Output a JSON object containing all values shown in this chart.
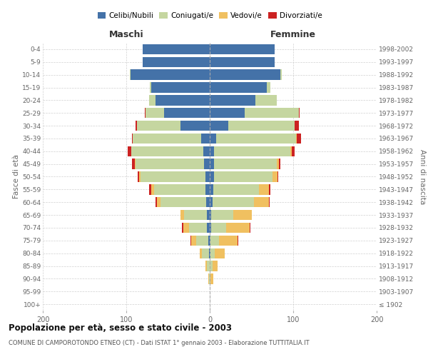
{
  "age_groups": [
    "100+",
    "95-99",
    "90-94",
    "85-89",
    "80-84",
    "75-79",
    "70-74",
    "65-69",
    "60-64",
    "55-59",
    "50-54",
    "45-49",
    "40-44",
    "35-39",
    "30-34",
    "25-29",
    "20-24",
    "15-19",
    "10-14",
    "5-9",
    "0-4"
  ],
  "birth_years": [
    "≤ 1902",
    "1903-1907",
    "1908-1912",
    "1913-1917",
    "1918-1922",
    "1923-1927",
    "1928-1932",
    "1933-1937",
    "1938-1942",
    "1943-1947",
    "1948-1952",
    "1953-1957",
    "1958-1962",
    "1963-1967",
    "1968-1972",
    "1973-1977",
    "1978-1982",
    "1983-1987",
    "1988-1992",
    "1993-1997",
    "1998-2002"
  ],
  "colors": {
    "celibi": "#4472a8",
    "coniugati": "#c5d6a0",
    "vedovi": "#f0c060",
    "divorziati": "#cc2222"
  },
  "males_celibi": [
    0,
    0,
    0,
    0,
    1,
    2,
    3,
    3,
    4,
    5,
    5,
    7,
    8,
    10,
    35,
    55,
    65,
    70,
    95,
    80,
    80
  ],
  "males_coniugati": [
    0,
    0,
    1,
    3,
    8,
    14,
    22,
    28,
    55,
    62,
    78,
    82,
    86,
    82,
    52,
    22,
    8,
    2,
    1,
    0,
    0
  ],
  "males_vedovi": [
    0,
    0,
    1,
    2,
    3,
    6,
    7,
    4,
    4,
    3,
    2,
    1,
    0,
    0,
    0,
    0,
    0,
    0,
    0,
    0,
    0
  ],
  "males_divorziati": [
    0,
    0,
    0,
    0,
    0,
    1,
    1,
    0,
    2,
    3,
    1,
    3,
    4,
    1,
    2,
    1,
    0,
    0,
    0,
    0,
    0
  ],
  "females_nubili": [
    0,
    0,
    0,
    0,
    1,
    1,
    2,
    2,
    3,
    4,
    5,
    5,
    5,
    8,
    22,
    42,
    55,
    68,
    85,
    78,
    78
  ],
  "females_coniugati": [
    0,
    0,
    1,
    3,
    5,
    10,
    18,
    26,
    50,
    55,
    70,
    75,
    92,
    95,
    80,
    65,
    25,
    5,
    1,
    0,
    0
  ],
  "females_vedovi": [
    0,
    0,
    3,
    6,
    12,
    22,
    28,
    22,
    18,
    12,
    6,
    3,
    1,
    1,
    0,
    0,
    0,
    0,
    0,
    0,
    0
  ],
  "females_divorziati": [
    0,
    0,
    0,
    0,
    0,
    1,
    1,
    0,
    1,
    2,
    1,
    2,
    4,
    5,
    5,
    1,
    0,
    0,
    0,
    0,
    0
  ],
  "title": "Popolazione per età, sesso e stato civile - 2003",
  "subtitle": "COMUNE DI CAMPOROTONDO ETNEO (CT) - Dati ISTAT 1° gennaio 2003 - Elaborazione TUTTITALIA.IT",
  "label_maschi": "Maschi",
  "label_femmine": "Femmine",
  "ylabel_left": "Fasce di età",
  "ylabel_right": "Anni di nascita",
  "legend_labels": [
    "Celibi/Nubili",
    "Coniugati/e",
    "Vedovi/e",
    "Divorziati/e"
  ],
  "xlim": 200,
  "bg_color": "#ffffff",
  "grid_color": "#cccccc"
}
